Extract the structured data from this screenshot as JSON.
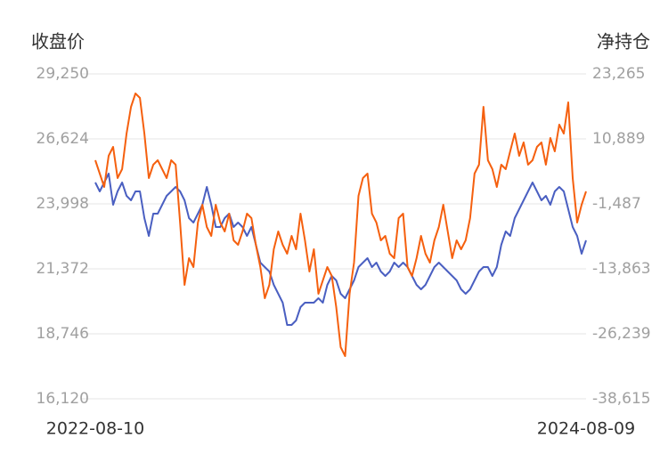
{
  "chart_data": {
    "type": "line",
    "categories": [
      "2022-08-10",
      null,
      null,
      null,
      null,
      null,
      null,
      null,
      null,
      null,
      null,
      null,
      null,
      null,
      null,
      null,
      null,
      null,
      null,
      null,
      null,
      null,
      null,
      null,
      null,
      null,
      null,
      null,
      null,
      null,
      null,
      null,
      null,
      null,
      null,
      null,
      null,
      null,
      null,
      null,
      null,
      null,
      null,
      null,
      null,
      null,
      null,
      null,
      null,
      null,
      null,
      null,
      null,
      null,
      null,
      null,
      null,
      null,
      null,
      null,
      null,
      null,
      null,
      null,
      null,
      null,
      null,
      null,
      null,
      null,
      null,
      null,
      null,
      null,
      null,
      null,
      null,
      null,
      null,
      null,
      null,
      null,
      null,
      null,
      null,
      null,
      null,
      null,
      null,
      null,
      null,
      null,
      null,
      null,
      null,
      null,
      null,
      null,
      null,
      null,
      null,
      null,
      null,
      null,
      null,
      null,
      null,
      null,
      null,
      null,
      "2024-08-09"
    ],
    "series": [
      {
        "name": "收盘价",
        "color": "#4a5fc1",
        "axis": "y",
        "values": [
          24862,
          24502,
          24862,
          25221,
          23962,
          24502,
          24862,
          24322,
          24142,
          24502,
          24502,
          23423,
          22703,
          23603,
          23603,
          23962,
          24322,
          24502,
          24682,
          24502,
          24142,
          23423,
          23243,
          23603,
          23962,
          24682,
          23962,
          23063,
          23063,
          23423,
          23603,
          23063,
          23243,
          23063,
          22703,
          23063,
          22344,
          21624,
          21445,
          21265,
          20725,
          20365,
          20006,
          19106,
          19106,
          19286,
          19826,
          20006,
          20006,
          20006,
          20186,
          20006,
          20725,
          21085,
          20905,
          20365,
          20186,
          20545,
          20905,
          21445,
          21624,
          21804,
          21445,
          21624,
          21265,
          21085,
          21265,
          21624,
          21445,
          21624,
          21445,
          21085,
          20725,
          20545,
          20725,
          21085,
          21445,
          21624,
          21445,
          21265,
          21085,
          20905,
          20545,
          20365,
          20545,
          20905,
          21265,
          21445,
          21445,
          21085,
          21445,
          22344,
          22883,
          22703,
          23423,
          23783,
          24142,
          24502,
          24862,
          24502,
          24142,
          24322,
          23962,
          24502,
          24682,
          24502,
          23783,
          23063,
          22703,
          21984,
          22524
        ]
      },
      {
        "name": "净持仓",
        "color": "#f5600f",
        "axis": "y2",
        "values": [
          6821,
          4278,
          1735,
          7668,
          9364,
          3430,
          5125,
          11906,
          16992,
          19535,
          18688,
          11906,
          3430,
          5973,
          6821,
          5125,
          3430,
          6821,
          5973,
          -5047,
          -16913,
          -11828,
          -13523,
          -5047,
          -1656,
          -5894,
          -7589,
          -1656,
          -5047,
          -6742,
          -3351,
          -8437,
          -9285,
          -6742,
          -3351,
          -4199,
          -9285,
          -13523,
          -19456,
          -16913,
          -10132,
          -6742,
          -9285,
          -10980,
          -7589,
          -10132,
          -3351,
          -8437,
          -14370,
          -10132,
          -18608,
          -16065,
          -13523,
          -15218,
          -21151,
          -28781,
          -30476,
          -18608,
          -12675,
          39,
          3430,
          4278,
          -3351,
          -5047,
          -8437,
          -7589,
          -10980,
          -11828,
          -4199,
          -3351,
          -13523,
          -15218,
          -11828,
          -7589,
          -10980,
          -12675,
          -8437,
          -5894,
          -1656,
          -6742,
          -11828,
          -8437,
          -10132,
          -8437,
          -4199,
          4278,
          5973,
          16992,
          6821,
          5125,
          1735,
          5973,
          5125,
          8516,
          11906,
          7668,
          10211,
          5973,
          6821,
          9364,
          10211,
          5973,
          11059,
          8516,
          13602,
          11906,
          17840,
          3430,
          -5047,
          -1656,
          887
        ]
      }
    ],
    "ylim": [
      16120,
      29250
    ],
    "yticks": [
      {
        "value": 16120,
        "label": "16,120"
      },
      {
        "value": 18746,
        "label": "18,746"
      },
      {
        "value": 21372,
        "label": "21,372"
      },
      {
        "value": 23998,
        "label": "23,998"
      },
      {
        "value": 26624,
        "label": "26,624"
      },
      {
        "value": 29250,
        "label": "29,250"
      }
    ],
    "y2lim": [
      -38615,
      23265
    ],
    "y2ticks": [
      {
        "value": -38615,
        "label": "-38,615"
      },
      {
        "value": -26239,
        "label": "-26,239"
      },
      {
        "value": -13863,
        "label": "-13,863"
      },
      {
        "value": -1487,
        "label": "-1,487"
      },
      {
        "value": 10889,
        "label": "10,889"
      },
      {
        "value": 23265,
        "label": "23,265"
      }
    ],
    "grid": true
  }
}
